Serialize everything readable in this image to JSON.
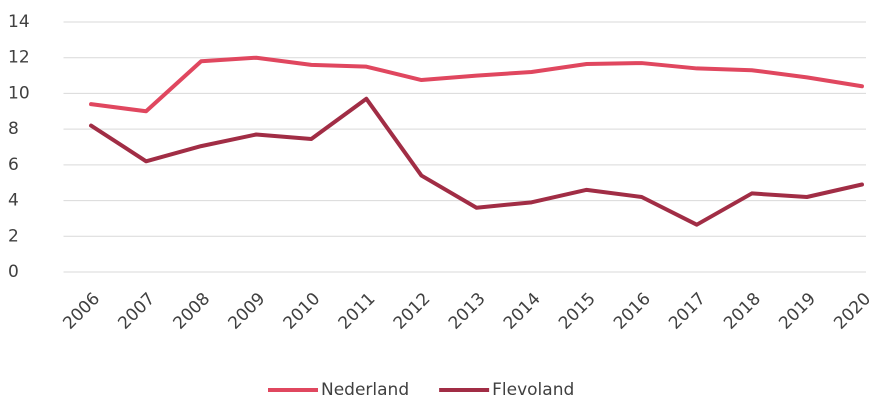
{
  "chart_data": {
    "type": "line",
    "categories": [
      "2006",
      "2007",
      "2008",
      "2009",
      "2010",
      "2011",
      "2012",
      "2013",
      "2014",
      "2015",
      "2016",
      "2017",
      "2018",
      "2019",
      "2020"
    ],
    "series": [
      {
        "name": "Nederland",
        "color": "#e0475f",
        "values": [
          9.4,
          9.0,
          11.8,
          12.0,
          11.6,
          11.5,
          10.75,
          11.0,
          11.2,
          11.65,
          11.7,
          11.4,
          11.3,
          10.9,
          10.4
        ]
      },
      {
        "name": "Flevoland",
        "color": "#a12d45",
        "values": [
          8.2,
          6.2,
          7.05,
          7.7,
          7.45,
          9.7,
          5.4,
          3.6,
          3.9,
          4.6,
          4.2,
          2.65,
          4.4,
          4.2,
          4.9
        ]
      }
    ],
    "ylim": [
      0,
      14
    ],
    "yticks": [
      0,
      2,
      4,
      6,
      8,
      10,
      12,
      14
    ],
    "grid": true,
    "legend": "bottom"
  }
}
